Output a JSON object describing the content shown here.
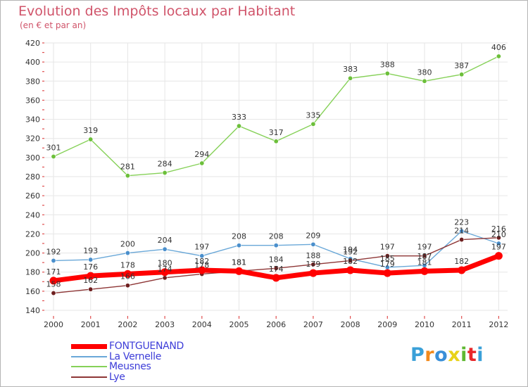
{
  "header": {
    "title": "Evolution des Impôts locaux par Habitant",
    "subtitle": "(en € et par an)"
  },
  "brand": {
    "text": "Proxiti",
    "colors": [
      "#3aa0d8",
      "#f28a1c",
      "#3a8fd8",
      "#e8d21a",
      "#5fb832",
      "#e8272a",
      "#3aa0d8"
    ]
  },
  "chart_data": {
    "type": "line",
    "title": "Evolution des Impôts locaux par Habitant",
    "subtitle": "(en € et par an)",
    "xlabel": "",
    "ylabel": "",
    "x": [
      "2000",
      "2001",
      "2002",
      "2003",
      "2004",
      "2005",
      "2006",
      "2007",
      "2008",
      "2009",
      "2010",
      "2011",
      "2012"
    ],
    "ylim": [
      140,
      420
    ],
    "yticks": [
      140,
      160,
      180,
      200,
      220,
      240,
      260,
      280,
      300,
      320,
      340,
      360,
      380,
      400,
      420
    ],
    "grid": true,
    "legend_position": "bottom-left",
    "series": [
      {
        "name": "Meusnes",
        "color": "#86d158",
        "marker": "#6cbf3a",
        "values": [
          301,
          319,
          281,
          284,
          294,
          333,
          317,
          335,
          383,
          388,
          380,
          387,
          406
        ]
      },
      {
        "name": "La Vernelle",
        "color": "#6aa8d8",
        "marker": "#4a8fcc",
        "values": [
          192,
          193,
          200,
          204,
          197,
          208,
          208,
          209,
          194,
          185,
          187,
          223,
          210
        ]
      },
      {
        "name": "Lye",
        "color": "#8e3636",
        "marker": "#6e1f1f",
        "values": [
          158,
          162,
          166,
          174,
          178,
          181,
          184,
          188,
          192,
          197,
          197,
          214,
          216
        ]
      },
      {
        "name": "FONTGUENAND",
        "color": "#ff0000",
        "marker": "#ff0000",
        "values": [
          171,
          176,
          178,
          180,
          182,
          181,
          174,
          179,
          182,
          179,
          181,
          182,
          197
        ]
      }
    ],
    "data_labels": {
      "Meusnes": [
        "301",
        "319",
        "281",
        "284",
        "294",
        "333",
        "317",
        "335",
        "383",
        "388",
        "380",
        "387",
        "406"
      ],
      "La Vernelle": [
        "192",
        "193",
        "200",
        "204",
        "197",
        "208",
        "208",
        "209",
        "194",
        "185",
        "187",
        "223",
        "210"
      ],
      "Lye": [
        "158",
        "162",
        "166",
        "174",
        "178",
        "181",
        "184",
        "188",
        "192",
        "197",
        "197",
        "214",
        "216"
      ],
      "FONTGUENAND": [
        "171",
        "176",
        "178",
        "180",
        "182",
        "181",
        "174",
        "179",
        "182",
        "179",
        "181",
        "182",
        "197"
      ]
    },
    "legend": [
      "FONTGUENAND",
      "La Vernelle",
      "Meusnes",
      "Lye"
    ]
  }
}
